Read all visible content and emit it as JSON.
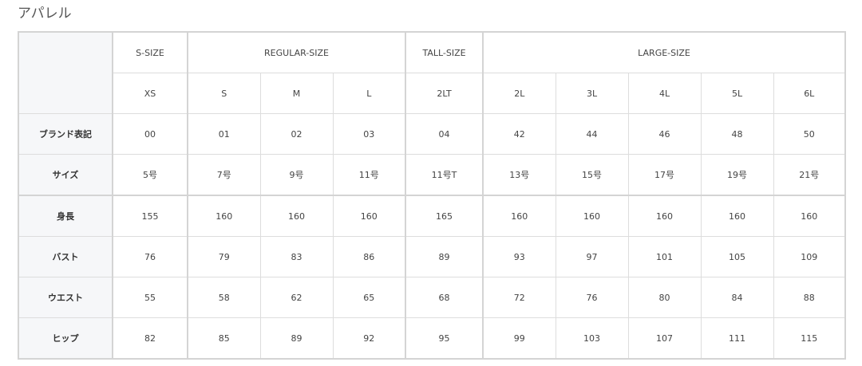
{
  "title": "アパレル",
  "groups": [
    "S-SIZE",
    "REGULAR-SIZE",
    "TALL-SIZE",
    "LARGE-SIZE"
  ],
  "sizes": [
    "XS",
    "S",
    "M",
    "L",
    "2LT",
    "2L",
    "3L",
    "4L",
    "5L",
    "6L"
  ],
  "rows": [
    {
      "label": "ブランド表記",
      "values": [
        "00",
        "01",
        "02",
        "03",
        "04",
        "42",
        "44",
        "46",
        "48",
        "50"
      ]
    },
    {
      "label": "サイズ",
      "values": [
        "5号",
        "7号",
        "9号",
        "11号",
        "11号T",
        "13号",
        "15号",
        "17号",
        "19号",
        "21号"
      ]
    },
    {
      "label": "身長",
      "values": [
        "155",
        "160",
        "160",
        "160",
        "165",
        "160",
        "160",
        "160",
        "160",
        "160"
      ]
    },
    {
      "label": "バスト",
      "values": [
        "76",
        "79",
        "83",
        "86",
        "89",
        "93",
        "97",
        "101",
        "105",
        "109"
      ]
    },
    {
      "label": "ウエスト",
      "values": [
        "55",
        "58",
        "62",
        "65",
        "68",
        "72",
        "76",
        "80",
        "84",
        "88"
      ]
    },
    {
      "label": "ヒップ",
      "values": [
        "82",
        "85",
        "89",
        "92",
        "95",
        "99",
        "103",
        "107",
        "111",
        "115"
      ]
    }
  ]
}
